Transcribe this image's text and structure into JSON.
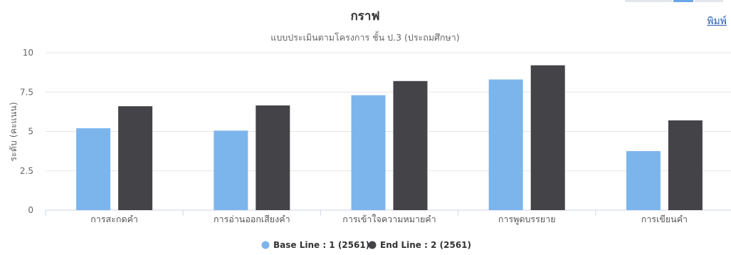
{
  "print_label": "พิมพ์",
  "chart_data": {
    "type": "bar",
    "title": "กราฟ",
    "subtitle": "แบบประเมินตามโครงการ ชั้น ป.3 (ประถมศึกษา)",
    "xlabel": "",
    "ylabel": "ระดับ (คะแนน)",
    "ylim": [
      0,
      10
    ],
    "yticks": [
      "0",
      "2.5",
      "5",
      "7.5",
      "10"
    ],
    "categories": [
      "การสะกดคำ",
      "การอ่านออกเสียงคำ",
      "การเข้าใจความหมายคำ",
      "การพูดบรรยาย",
      "การเขียนคำ"
    ],
    "series": [
      {
        "name": "Base Line : 1 (2561)",
        "color": "#7cb5ec",
        "values": [
          5.2,
          5.05,
          7.3,
          8.3,
          3.75
        ]
      },
      {
        "name": "End Line : 2 (2561)",
        "color": "#434348",
        "values": [
          6.6,
          6.65,
          8.2,
          9.2,
          5.7
        ]
      }
    ],
    "grid": true,
    "legend_position": "bottom-center"
  }
}
